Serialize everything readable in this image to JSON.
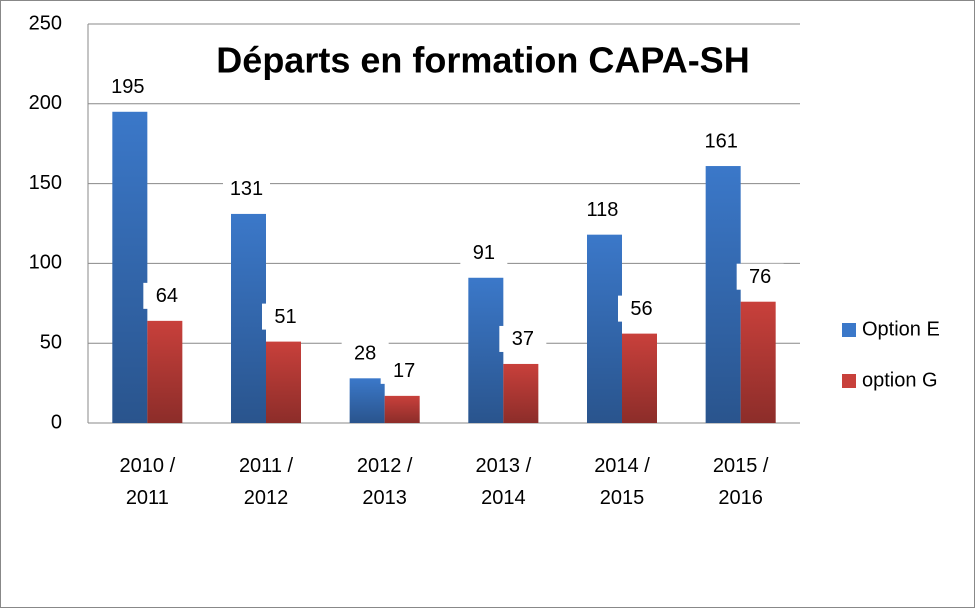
{
  "chart_data": {
    "type": "bar",
    "title": "Départs en formation CAPA-SH",
    "categories": [
      "2010 / 2011",
      "2011 / 2012",
      "2012 / 2013",
      "2013 / 2014",
      "2014 / 2015",
      "2015 / 2016"
    ],
    "series": [
      {
        "name": "Option E",
        "color": "#3b78c9",
        "values": [
          195,
          131,
          28,
          91,
          118,
          161
        ]
      },
      {
        "name": "option G",
        "color": "#c8403b",
        "values": [
          64,
          51,
          17,
          37,
          56,
          76
        ]
      }
    ],
    "ylim": [
      0,
      250
    ],
    "yticks": [
      0,
      50,
      100,
      150,
      200,
      250
    ],
    "grid": true,
    "legend": "right"
  }
}
